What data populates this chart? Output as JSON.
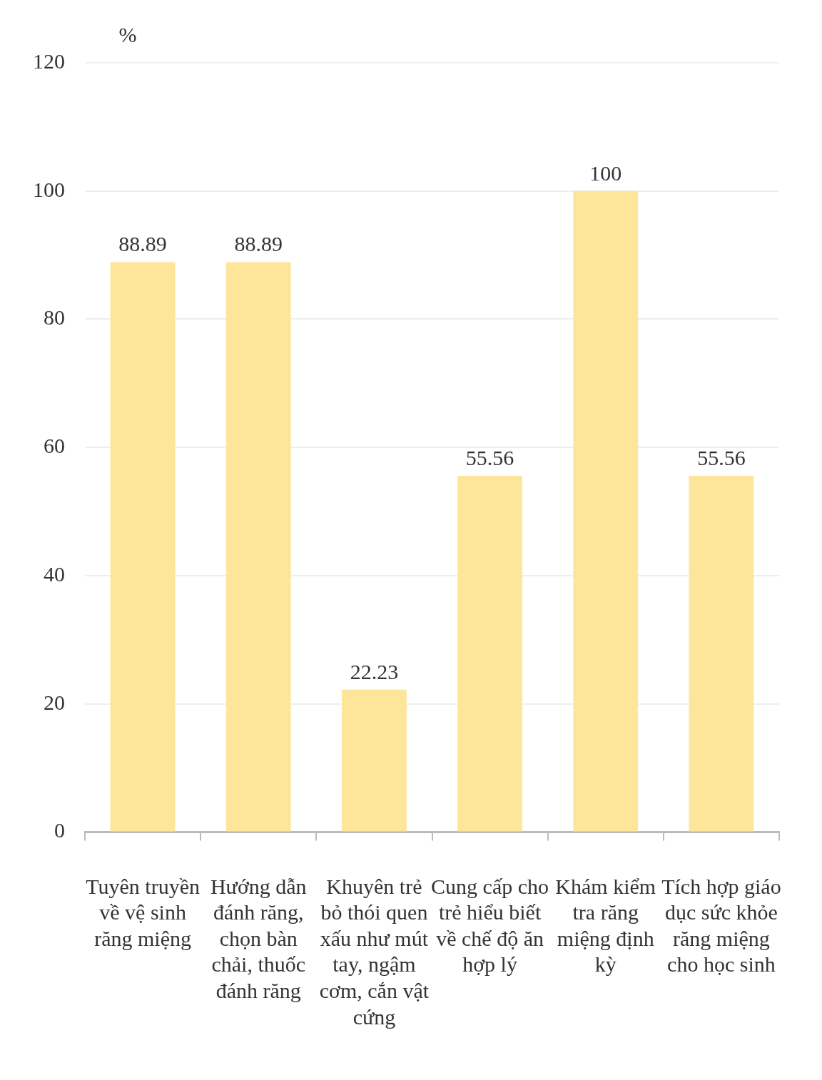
{
  "chart_data": {
    "type": "bar",
    "ylabel": "%",
    "categories": [
      "Tuyên truyền về vệ sinh răng miệng",
      "Hướng dẫn đánh răng, chọn bàn chải, thuốc đánh răng",
      "Khuyên trẻ bỏ thói quen xấu như mút tay, ngậm cơm, cắn vật cứng",
      "Cung cấp cho trẻ hiểu biết về chế độ ăn hợp lý",
      "Khám kiểm tra răng miệng định kỳ",
      "Tích hợp giáo dục sức khỏe răng miệng cho học sinh"
    ],
    "values": [
      88.89,
      88.89,
      22.23,
      55.56,
      100,
      55.56
    ],
    "color": "#fde599",
    "ylim": [
      0,
      120
    ],
    "yticks": [
      0,
      20,
      40,
      60,
      80,
      100,
      120
    ],
    "grid": "y",
    "data_labels": true,
    "legend": false
  }
}
